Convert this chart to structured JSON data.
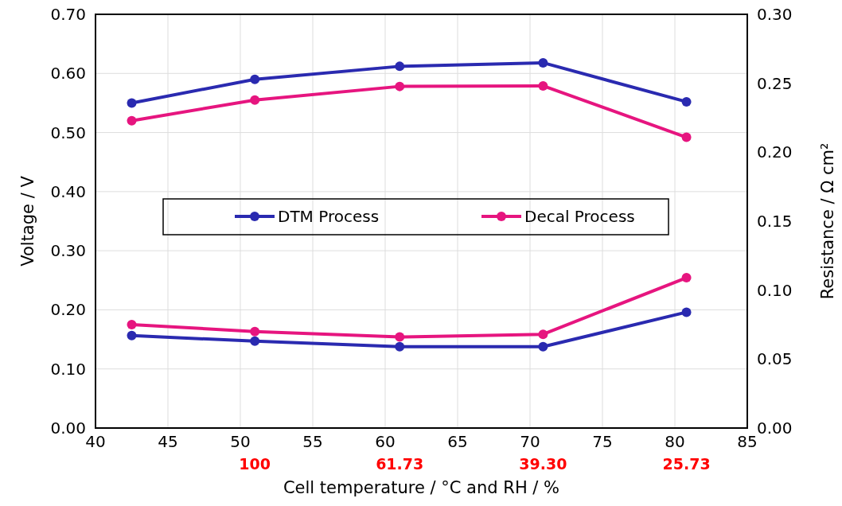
{
  "chart_data": {
    "type": "line",
    "xlabel": "Cell temperature / °C and RH / %",
    "ylabel": "Voltage / V",
    "y2label": "Resistance / Ω cm²",
    "xlim": [
      40,
      85
    ],
    "xticks": [
      40,
      45,
      50,
      55,
      60,
      65,
      70,
      75,
      80,
      85
    ],
    "ylim": [
      0,
      0.7
    ],
    "yticks": [
      {
        "value": 0,
        "label": "0.00"
      },
      {
        "value": 0.1,
        "label": "0.10"
      },
      {
        "value": 0.2,
        "label": "0.20"
      },
      {
        "value": 0.3,
        "label": "0.30"
      },
      {
        "value": 0.4,
        "label": "0.40"
      },
      {
        "value": 0.5,
        "label": "0.50"
      },
      {
        "value": 0.6,
        "label": "0.60"
      },
      {
        "value": 0.7,
        "label": "0.70"
      }
    ],
    "y2lim": [
      0,
      0.3
    ],
    "y2ticks": [
      {
        "value": 0,
        "label": "0.00"
      },
      {
        "value": 0.05,
        "label": "0.05"
      },
      {
        "value": 0.1,
        "label": "0.10"
      },
      {
        "value": 0.15,
        "label": "0.15"
      },
      {
        "value": 0.2,
        "label": "0.20"
      },
      {
        "value": 0.25,
        "label": "0.25"
      },
      {
        "value": 0.3,
        "label": "0.30"
      }
    ],
    "x": [
      42.5,
      51,
      61,
      70.9,
      80.8
    ],
    "series": [
      {
        "name": "DTM Process",
        "color": "#2a2ab0",
        "values": [
          0.55,
          0.59,
          0.612,
          0.618,
          0.552
        ]
      },
      {
        "name": "Decal Process",
        "color": "#e6157f",
        "values": [
          0.52,
          0.555,
          0.578,
          0.579,
          0.492
        ]
      },
      {
        "color": "#2a2ab0",
        "axis": "y2",
        "values": [
          0.067,
          0.063,
          0.059,
          0.059,
          0.084
        ]
      },
      {
        "color": "#e6157f",
        "axis": "y2",
        "values": [
          0.075,
          0.07,
          0.066,
          0.068,
          0.109
        ]
      }
    ],
    "annotations": [
      "100",
      "61.73",
      "39.30",
      "25.73"
    ],
    "grid": true,
    "legend": "center",
    "marker": "circle",
    "line_style": "solid"
  }
}
